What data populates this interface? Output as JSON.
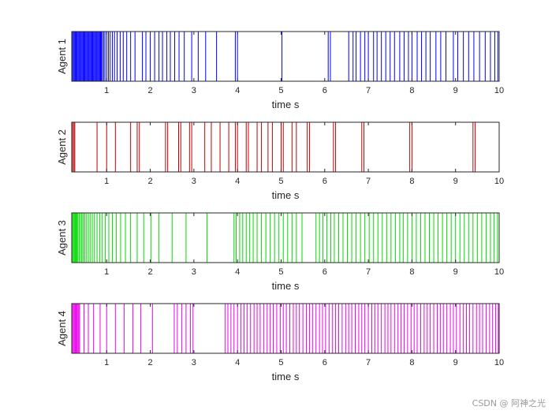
{
  "chart_data": [
    {
      "type": "event-raster",
      "ylabel": "Agent 1",
      "xlabel": "time s",
      "xlim": [
        0.2,
        10
      ],
      "ylim": [
        0,
        1
      ],
      "xticks": [
        "1",
        "2",
        "3",
        "4",
        "5",
        "6",
        "7",
        "8",
        "9",
        "10"
      ],
      "color": "#0000ff",
      "events": [
        0.2,
        0.22,
        0.24,
        0.26,
        0.28,
        0.3,
        0.32,
        0.34,
        0.36,
        0.38,
        0.4,
        0.42,
        0.44,
        0.46,
        0.48,
        0.5,
        0.52,
        0.54,
        0.56,
        0.58,
        0.6,
        0.62,
        0.64,
        0.66,
        0.68,
        0.7,
        0.72,
        0.74,
        0.76,
        0.78,
        0.8,
        0.82,
        0.84,
        0.86,
        0.88,
        0.9,
        0.93,
        0.96,
        1.0,
        1.04,
        1.08,
        1.13,
        1.18,
        1.24,
        1.31,
        1.38,
        1.46,
        1.55,
        1.65,
        1.82,
        1.9,
        2.0,
        2.1,
        2.2,
        2.28,
        2.38,
        2.46,
        2.56,
        2.66,
        2.78,
        2.95,
        3.1,
        3.27,
        3.52,
        3.95,
        4.0,
        5.02,
        6.08,
        6.13,
        6.55,
        6.65,
        6.72,
        6.82,
        6.92,
        7.0,
        7.12,
        7.2,
        7.3,
        7.4,
        7.5,
        7.6,
        7.72,
        7.82,
        7.92,
        8.0,
        8.12,
        8.22,
        8.32,
        8.42,
        8.55,
        8.66,
        8.78,
        8.95,
        9.05,
        9.18,
        9.3,
        9.42,
        9.55,
        9.68,
        9.8,
        9.9,
        9.97
      ]
    },
    {
      "type": "event-raster",
      "ylabel": "Agent 2",
      "xlabel": "time s",
      "xlim": [
        0.2,
        10
      ],
      "ylim": [
        0,
        1
      ],
      "xticks": [
        "1",
        "2",
        "3",
        "4",
        "5",
        "6",
        "7",
        "8",
        "9",
        "10"
      ],
      "color": "#c00000",
      "events": [
        0.22,
        0.25,
        0.27,
        0.78,
        1.0,
        1.2,
        1.55,
        1.7,
        1.75,
        2.35,
        2.4,
        2.65,
        2.7,
        2.9,
        2.95,
        3.25,
        3.4,
        3.6,
        3.8,
        3.95,
        4.0,
        4.2,
        4.25,
        4.45,
        4.55,
        4.7,
        4.8,
        5.0,
        5.05,
        5.25,
        5.35,
        5.6,
        5.65,
        6.2,
        6.25,
        6.85,
        6.9,
        7.95,
        8.0,
        9.4,
        9.45
      ]
    },
    {
      "type": "event-raster",
      "ylabel": "Agent 3",
      "xlabel": "time s",
      "xlim": [
        0.2,
        10
      ],
      "ylim": [
        0,
        1
      ],
      "xticks": [
        "1",
        "2",
        "3",
        "4",
        "5",
        "6",
        "7",
        "8",
        "9",
        "10"
      ],
      "color": "#00dd00",
      "events": [
        0.2,
        0.22,
        0.24,
        0.26,
        0.28,
        0.3,
        0.32,
        0.34,
        0.37,
        0.4,
        0.43,
        0.46,
        0.5,
        0.54,
        0.58,
        0.62,
        0.67,
        0.72,
        0.78,
        0.84,
        0.9,
        0.97,
        1.05,
        1.13,
        1.22,
        1.32,
        1.43,
        1.55,
        1.7,
        1.85,
        2.02,
        2.2,
        2.5,
        2.82,
        3.3,
        3.92,
        3.97,
        4.05,
        4.12,
        4.2,
        4.28,
        4.36,
        4.45,
        4.55,
        4.65,
        4.75,
        4.85,
        4.95,
        5.05,
        5.15,
        5.25,
        5.35,
        5.48,
        5.8,
        5.88,
        5.96,
        6.05,
        6.14,
        6.22,
        6.32,
        6.42,
        6.52,
        6.62,
        6.72,
        6.82,
        6.92,
        7.02,
        7.12,
        7.22,
        7.32,
        7.42,
        7.52,
        7.62,
        7.72,
        7.8,
        7.9,
        8.0,
        8.1,
        8.2,
        8.3,
        8.4,
        8.5,
        8.6,
        8.7,
        8.8,
        8.9,
        9.0,
        9.1,
        9.2,
        9.3,
        9.4,
        9.5,
        9.6,
        9.7,
        9.8,
        9.88,
        9.96
      ]
    },
    {
      "type": "event-raster",
      "ylabel": "Agent 4",
      "xlabel": "time s",
      "xlim": [
        0.2,
        10
      ],
      "ylim": [
        0,
        1
      ],
      "xticks": [
        "1",
        "2",
        "3",
        "4",
        "5",
        "6",
        "7",
        "8",
        "9",
        "10"
      ],
      "color": "#ee00ee",
      "events": [
        0.2,
        0.22,
        0.24,
        0.26,
        0.28,
        0.3,
        0.32,
        0.34,
        0.36,
        0.38,
        0.48,
        0.58,
        0.7,
        0.85,
        1.0,
        1.2,
        1.4,
        1.6,
        1.78,
        2.05,
        2.55,
        2.62,
        2.72,
        2.82,
        2.92,
        2.98,
        3.72,
        3.78,
        3.85,
        3.92,
        4.0,
        4.08,
        4.15,
        4.22,
        4.3,
        4.38,
        4.45,
        4.52,
        4.6,
        4.68,
        4.75,
        4.82,
        4.9,
        4.98,
        5.05,
        5.12,
        5.2,
        5.28,
        5.35,
        5.42,
        5.5,
        5.58,
        5.65,
        5.72,
        5.8,
        5.88,
        5.95,
        6.02,
        6.1,
        6.18,
        6.25,
        6.32,
        6.4,
        6.48,
        6.55,
        6.62,
        6.7,
        6.78,
        6.85,
        6.92,
        7.0,
        7.08,
        7.15,
        7.22,
        7.3,
        7.38,
        7.45,
        7.52,
        7.6,
        7.68,
        7.75,
        7.82,
        7.9,
        7.98,
        8.05,
        8.12,
        8.2,
        8.28,
        8.35,
        8.42,
        8.5,
        8.58,
        8.65,
        8.72,
        8.8,
        8.88,
        8.95,
        9.02,
        9.1,
        9.18,
        9.25,
        9.32,
        9.4,
        9.48,
        9.55,
        9.62,
        9.7,
        9.78,
        9.85,
        9.92,
        9.98
      ]
    }
  ],
  "watermark": "CSDN @ 阿神之光"
}
